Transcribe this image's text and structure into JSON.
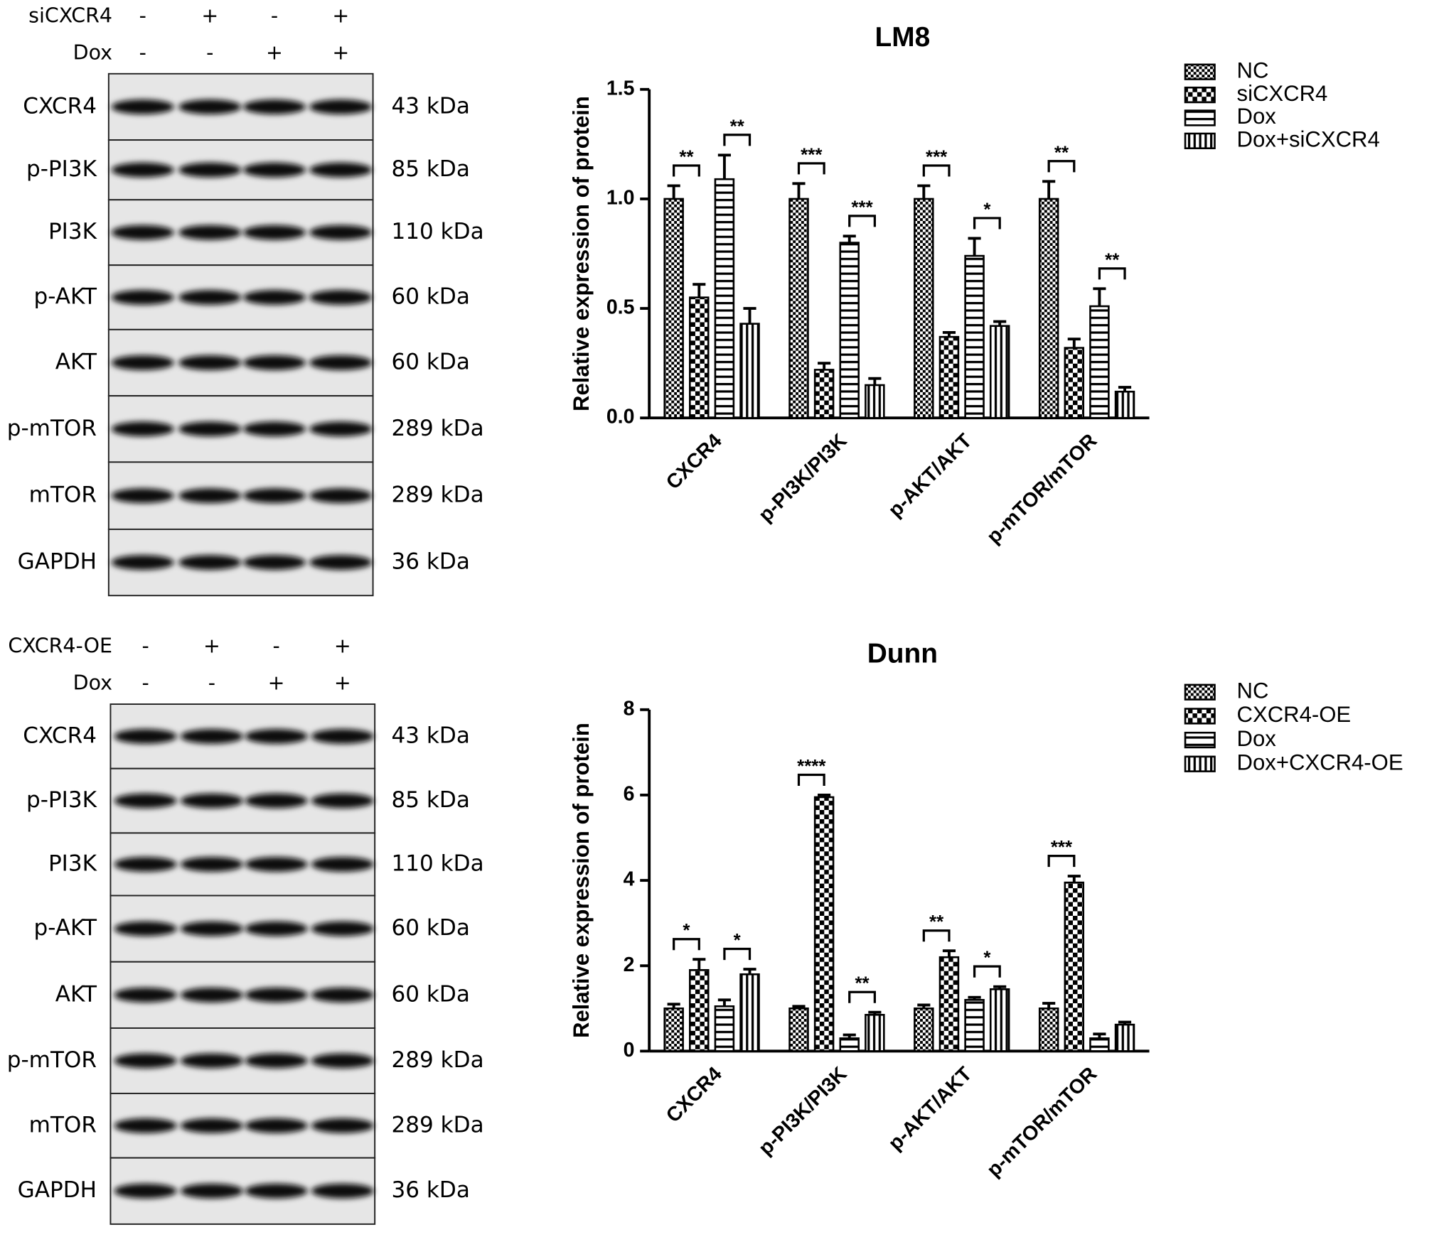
{
  "blots": [
    {
      "treatments": [
        {
          "name": "siCXCR4",
          "signs": [
            "-",
            "+",
            "-",
            "+"
          ]
        },
        {
          "name": "Dox",
          "signs": [
            "-",
            "-",
            "+",
            "+"
          ]
        }
      ],
      "rows": [
        {
          "protein": "CXCR4",
          "size": "43 kDa"
        },
        {
          "protein": "p-PI3K",
          "size": "85 kDa"
        },
        {
          "protein": "PI3K",
          "size": "110 kDa"
        },
        {
          "protein": "p-AKT",
          "size": "60 kDa"
        },
        {
          "protein": "AKT",
          "size": "60 kDa"
        },
        {
          "protein": "p-mTOR",
          "size": "289 kDa"
        },
        {
          "protein": "mTOR",
          "size": "289 kDa"
        },
        {
          "protein": "GAPDH",
          "size": "36 kDa"
        }
      ]
    },
    {
      "treatments": [
        {
          "name": "CXCR4-OE",
          "signs": [
            "-",
            "+",
            "-",
            "+"
          ]
        },
        {
          "name": "Dox",
          "signs": [
            "-",
            "-",
            "+",
            "+"
          ]
        }
      ],
      "rows": [
        {
          "protein": "CXCR4",
          "size": "43 kDa"
        },
        {
          "protein": "p-PI3K",
          "size": "85 kDa"
        },
        {
          "protein": "PI3K",
          "size": "110 kDa"
        },
        {
          "protein": "p-AKT",
          "size": "60 kDa"
        },
        {
          "protein": "AKT",
          "size": "60 kDa"
        },
        {
          "protein": "p-mTOR",
          "size": "289 kDa"
        },
        {
          "protein": "mTOR",
          "size": "289 kDa"
        },
        {
          "protein": "GAPDH",
          "size": "36 kDa"
        }
      ]
    }
  ],
  "chart_data": [
    {
      "type": "bar",
      "title": "LM8",
      "y_label": "Relative expression of protein",
      "categories": [
        "CXCR4",
        "p-PI3K/PI3K",
        "p-AKT/AKT",
        "p-mTOR/mTOR"
      ],
      "series": [
        {
          "name": "NC",
          "color": "#000000",
          "values": [
            1.0,
            1.0,
            1.0,
            1.0
          ],
          "errors": [
            0.06,
            0.07,
            0.06,
            0.08
          ]
        },
        {
          "name": "siCXCR4",
          "color": "#000000",
          "values": [
            0.55,
            0.22,
            0.37,
            0.32
          ],
          "errors": [
            0.06,
            0.03,
            0.02,
            0.04
          ]
        },
        {
          "name": "Dox",
          "color": "#000000",
          "values": [
            1.09,
            0.8,
            0.74,
            0.51
          ],
          "errors": [
            0.11,
            0.03,
            0.08,
            0.08
          ]
        },
        {
          "name": "Dox+siCXCR4",
          "color": "#000000",
          "values": [
            0.43,
            0.15,
            0.42,
            0.12
          ],
          "errors": [
            0.07,
            0.03,
            0.02,
            0.02
          ]
        }
      ],
      "significance": [
        [
          "**",
          "**"
        ],
        [
          "***",
          "***"
        ],
        [
          "***",
          "*"
        ],
        [
          "**",
          "**"
        ]
      ],
      "ylim": [
        0,
        1.5
      ],
      "yticks": [
        {
          "value": 0,
          "label": "0.0"
        },
        0.5,
        {
          "value": 1,
          "label": "1.0"
        },
        1.5
      ]
    },
    {
      "type": "bar",
      "title": "Dunn",
      "y_label": "Relative expression of protein",
      "categories": [
        "CXCR4",
        "p-PI3K/PI3K",
        "p-AKT/AKT",
        "p-mTOR/mTOR"
      ],
      "series": [
        {
          "name": "NC",
          "color": "#000000",
          "values": [
            1.0,
            1.0,
            1.0,
            1.0
          ],
          "errors": [
            0.1,
            0.05,
            0.08,
            0.12
          ]
        },
        {
          "name": "CXCR4-OE",
          "color": "#000000",
          "values": [
            1.9,
            5.95,
            2.2,
            3.95
          ],
          "errors": [
            0.25,
            0.05,
            0.15,
            0.15
          ]
        },
        {
          "name": "Dox",
          "color": "#000000",
          "values": [
            1.05,
            0.3,
            1.2,
            0.3
          ],
          "errors": [
            0.15,
            0.08,
            0.06,
            0.1
          ]
        },
        {
          "name": "Dox+CXCR4-OE",
          "color": "#000000",
          "values": [
            1.8,
            0.85,
            1.45,
            0.62
          ],
          "errors": [
            0.12,
            0.06,
            0.06,
            0.06
          ]
        }
      ],
      "significance": [
        [
          "*",
          "*"
        ],
        [
          "****",
          "**"
        ],
        [
          "**",
          "*"
        ],
        [
          "***",
          null
        ]
      ],
      "ylim": [
        0,
        8
      ],
      "yticks": [
        0,
        2,
        4,
        6,
        8
      ]
    }
  ]
}
